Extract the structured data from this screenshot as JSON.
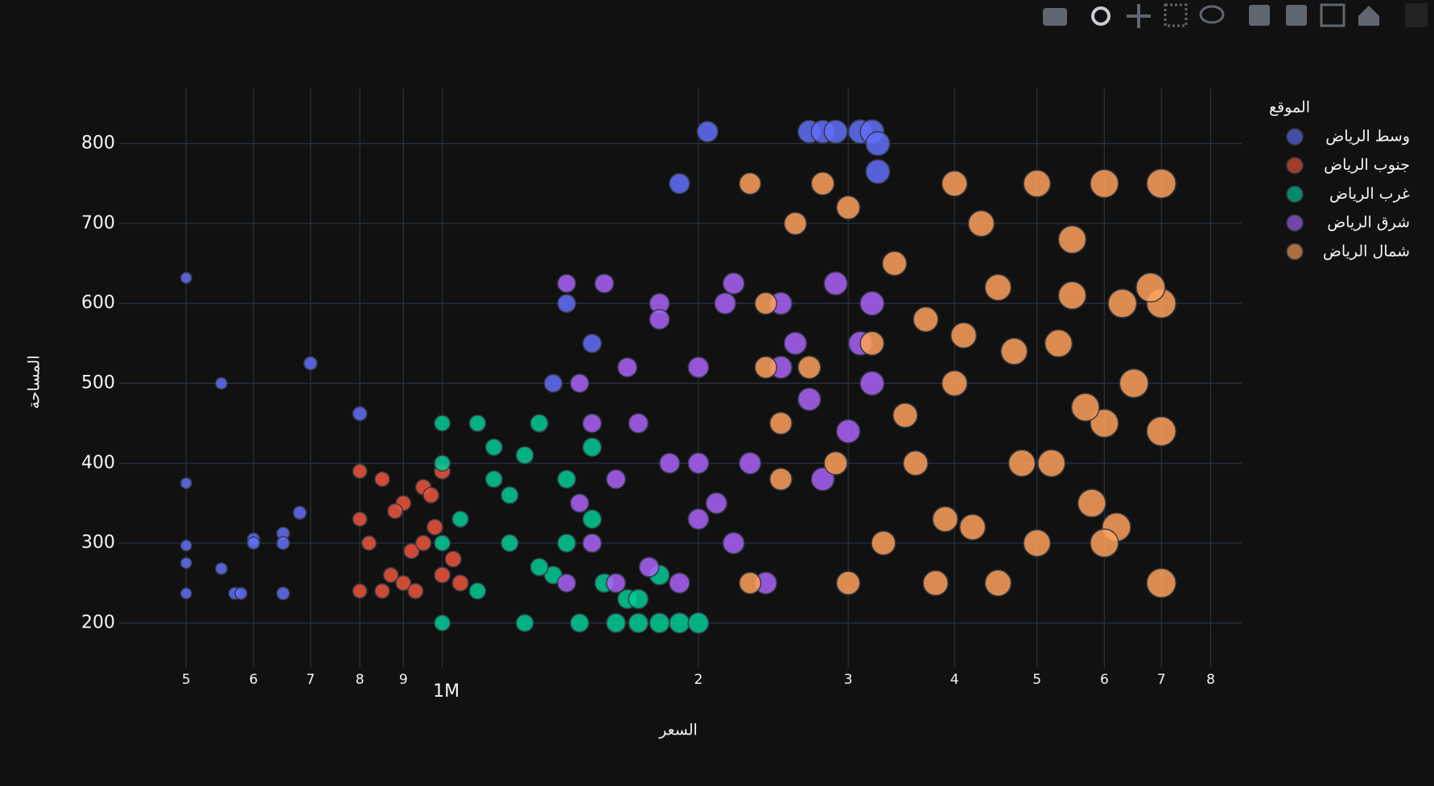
{
  "chart_data": {
    "type": "scatter",
    "x_label": "السعر",
    "y_label": "المساحة",
    "legend_title": "الموقع",
    "log_x": true,
    "grid": true,
    "xlim": [
      417000,
      8700000
    ],
    "xticks": [
      {
        "value": 500000,
        "label": "5"
      },
      {
        "value": 600000,
        "label": "6"
      },
      {
        "value": 700000,
        "label": "7"
      },
      {
        "value": 800000,
        "label": "8"
      },
      {
        "value": 900000,
        "label": "9"
      },
      {
        "value": 1000000,
        "label": "1M"
      },
      {
        "value": 2000000,
        "label": "2"
      },
      {
        "value": 3000000,
        "label": "3"
      },
      {
        "value": 4000000,
        "label": "4"
      },
      {
        "value": 5000000,
        "label": "5"
      },
      {
        "value": 6000000,
        "label": "6"
      },
      {
        "value": 7000000,
        "label": "7"
      },
      {
        "value": 8000000,
        "label": "8"
      }
    ],
    "ylim": [
      144,
      869
    ],
    "yticks": [
      200,
      300,
      400,
      500,
      600,
      700,
      800
    ],
    "series": [
      {
        "name": "وسط الرياض",
        "color": "#636efa",
        "x": [
          500000,
          550000,
          700000,
          800000,
          500000,
          500000,
          500000,
          500000,
          550000,
          600000,
          600000,
          650000,
          650000,
          650000,
          570000,
          580000,
          680000,
          1900000,
          2050000,
          2700000,
          2800000,
          2900000,
          3100000,
          3200000,
          3250000,
          3250000,
          1400000,
          1500000,
          1350000
        ],
        "values": [
          632,
          500,
          525,
          462,
          375,
          297,
          275,
          237,
          268,
          305,
          300,
          312,
          300,
          237,
          237,
          237,
          338,
          750,
          815,
          815,
          815,
          815,
          815,
          815,
          800,
          765,
          600,
          550,
          500
        ]
      },
      {
        "name": "جنوب الرياض",
        "color": "#EF553B",
        "x": [
          800000,
          800000,
          820000,
          850000,
          870000,
          900000,
          920000,
          950000,
          980000,
          1000000,
          1030000,
          800000,
          850000,
          900000,
          950000,
          1000000,
          880000,
          930000,
          970000,
          1050000
        ],
        "values": [
          390,
          240,
          300,
          380,
          260,
          350,
          290,
          370,
          320,
          390,
          280,
          330,
          240,
          250,
          300,
          260,
          340,
          240,
          360,
          250
        ]
      },
      {
        "name": "غرب الرياض",
        "color": "#00cc96",
        "x": [
          1000000,
          1000000,
          1000000,
          1000000,
          1050000,
          1100000,
          1150000,
          1200000,
          1250000,
          1300000,
          1350000,
          1400000,
          1450000,
          1500000,
          1550000,
          1600000,
          1650000,
          1700000,
          1800000,
          1900000,
          2000000,
          1100000,
          1200000,
          1300000,
          1400000,
          1500000,
          1700000,
          1800000,
          1150000,
          1250000
        ],
        "values": [
          450,
          400,
          300,
          200,
          330,
          450,
          420,
          300,
          200,
          450,
          260,
          380,
          200,
          330,
          250,
          200,
          230,
          200,
          200,
          200,
          200,
          240,
          360,
          270,
          300,
          420,
          230,
          260,
          380,
          410
        ]
      },
      {
        "name": "شرق الرياض",
        "color": "#ab63fa",
        "x": [
          1400000,
          1400000,
          1450000,
          1500000,
          1550000,
          1600000,
          1700000,
          1800000,
          1900000,
          2000000,
          2100000,
          2200000,
          2300000,
          2500000,
          2700000,
          2900000,
          3100000,
          3200000,
          1500000,
          1650000,
          1750000,
          1850000,
          2000000,
          2150000,
          2400000,
          2600000,
          2800000,
          3000000,
          1450000,
          1600000,
          1800000,
          2000000,
          2200000,
          2500000,
          3200000
        ],
        "values": [
          625,
          250,
          500,
          300,
          625,
          380,
          450,
          600,
          250,
          520,
          350,
          625,
          400,
          600,
          480,
          625,
          550,
          500,
          450,
          520,
          270,
          400,
          330,
          600,
          250,
          550,
          380,
          440,
          350,
          250,
          580,
          400,
          300,
          520,
          600
        ]
      },
      {
        "name": "شمال الرياض",
        "color": "#FFA15A",
        "x": [
          2300000,
          2300000,
          2400000,
          2500000,
          2600000,
          2800000,
          3000000,
          3000000,
          3200000,
          3400000,
          3600000,
          3800000,
          4000000,
          4000000,
          4200000,
          4500000,
          4500000,
          4800000,
          5000000,
          5000000,
          5300000,
          5500000,
          5800000,
          6000000,
          6000000,
          6300000,
          6500000,
          7000000,
          7000000,
          7000000,
          7000000,
          2500000,
          2700000,
          3300000,
          3500000,
          3700000,
          4300000,
          4700000,
          5200000,
          5700000,
          6200000,
          6800000,
          2400000,
          2900000,
          3900000,
          4100000,
          5500000,
          6000000
        ],
        "values": [
          750,
          250,
          600,
          450,
          700,
          750,
          250,
          720,
          550,
          650,
          400,
          250,
          750,
          500,
          320,
          620,
          250,
          400,
          750,
          300,
          550,
          680,
          350,
          750,
          450,
          600,
          500,
          750,
          250,
          600,
          440,
          380,
          520,
          300,
          460,
          580,
          700,
          540,
          400,
          470,
          320,
          620,
          520,
          400,
          330,
          560,
          610,
          300
        ]
      }
    ]
  }
}
